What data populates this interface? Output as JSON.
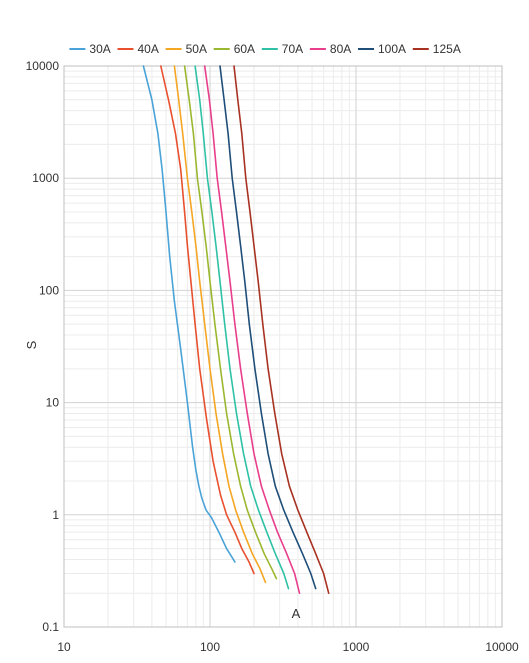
{
  "chart_data": {
    "type": "line",
    "title": "",
    "xlabel": "A",
    "ylabel": "S",
    "x_scale": "log",
    "y_scale": "log",
    "xlim": [
      10,
      10000
    ],
    "ylim": [
      0.1,
      10000
    ],
    "x_ticks": [
      "10",
      "100",
      "1000",
      "10000"
    ],
    "y_ticks": [
      "0.1",
      "1",
      "10",
      "100",
      "1000",
      "10000"
    ],
    "grid": true,
    "legend_position": "top",
    "series": [
      {
        "name": "30A",
        "color": "#4aa3d8",
        "x": [
          35,
          40,
          44,
          47,
          50,
          53,
          57,
          63,
          70,
          76,
          80,
          84,
          88,
          94,
          102,
          115,
          130,
          148
        ],
        "y": [
          10000,
          5000,
          2500,
          1200,
          500,
          200,
          80,
          30,
          10,
          4,
          2.5,
          1.8,
          1.4,
          1.1,
          0.95,
          0.7,
          0.5,
          0.38
        ]
      },
      {
        "name": "40A",
        "color": "#e8502f",
        "x": [
          46,
          52,
          58,
          63,
          67,
          70,
          74,
          79,
          85,
          95,
          105,
          118,
          130,
          148,
          165,
          185,
          200
        ],
        "y": [
          10000,
          5000,
          2500,
          1200,
          500,
          250,
          120,
          50,
          20,
          7,
          3,
          1.5,
          1.0,
          0.7,
          0.5,
          0.38,
          0.3
        ]
      },
      {
        "name": "50A",
        "color": "#f5a623",
        "x": [
          57,
          61,
          65,
          70,
          75,
          80,
          85,
          92,
          100,
          110,
          122,
          135,
          150,
          170,
          195,
          220,
          240
        ],
        "y": [
          10000,
          5000,
          2500,
          1000,
          500,
          250,
          120,
          50,
          20,
          8,
          3.5,
          1.8,
          1.1,
          0.7,
          0.45,
          0.33,
          0.25
        ]
      },
      {
        "name": "60A",
        "color": "#9ab82f",
        "x": [
          67,
          72,
          77,
          82,
          88,
          94,
          100,
          108,
          118,
          130,
          145,
          162,
          180,
          205,
          235,
          265,
          285
        ],
        "y": [
          10000,
          5000,
          2500,
          1000,
          500,
          250,
          120,
          50,
          20,
          8,
          3.5,
          1.8,
          1.1,
          0.7,
          0.45,
          0.33,
          0.27
        ]
      },
      {
        "name": "70A",
        "color": "#2fc1a6",
        "x": [
          79,
          85,
          90,
          96,
          103,
          110,
          117,
          126,
          137,
          152,
          170,
          190,
          215,
          245,
          280,
          320,
          345
        ],
        "y": [
          10000,
          5000,
          2500,
          1000,
          500,
          250,
          120,
          50,
          20,
          8,
          3.5,
          1.8,
          1.1,
          0.7,
          0.45,
          0.3,
          0.22
        ]
      },
      {
        "name": "80A",
        "color": "#e83e8c",
        "x": [
          92,
          99,
          105,
          112,
          120,
          128,
          137,
          148,
          162,
          180,
          200,
          225,
          255,
          290,
          335,
          380,
          410
        ],
        "y": [
          10000,
          5000,
          2500,
          1000,
          500,
          250,
          120,
          50,
          20,
          8,
          3.5,
          1.8,
          1.1,
          0.7,
          0.45,
          0.3,
          0.2
        ]
      },
      {
        "name": "100A",
        "color": "#1f4e79",
        "x": [
          117,
          125,
          133,
          142,
          152,
          162,
          173,
          186,
          203,
          225,
          250,
          280,
          320,
          370,
          430,
          490,
          530
        ],
        "y": [
          10000,
          5000,
          2500,
          1000,
          500,
          250,
          120,
          50,
          20,
          8,
          3.5,
          1.8,
          1.1,
          0.7,
          0.45,
          0.3,
          0.22
        ]
      },
      {
        "name": "125A",
        "color": "#a83222",
        "x": [
          146,
          155,
          165,
          176,
          188,
          200,
          214,
          230,
          250,
          278,
          310,
          350,
          400,
          460,
          530,
          600,
          650
        ],
        "y": [
          10000,
          5000,
          2500,
          1000,
          500,
          250,
          120,
          50,
          20,
          8,
          3.5,
          1.8,
          1.1,
          0.7,
          0.45,
          0.3,
          0.2
        ]
      }
    ]
  }
}
